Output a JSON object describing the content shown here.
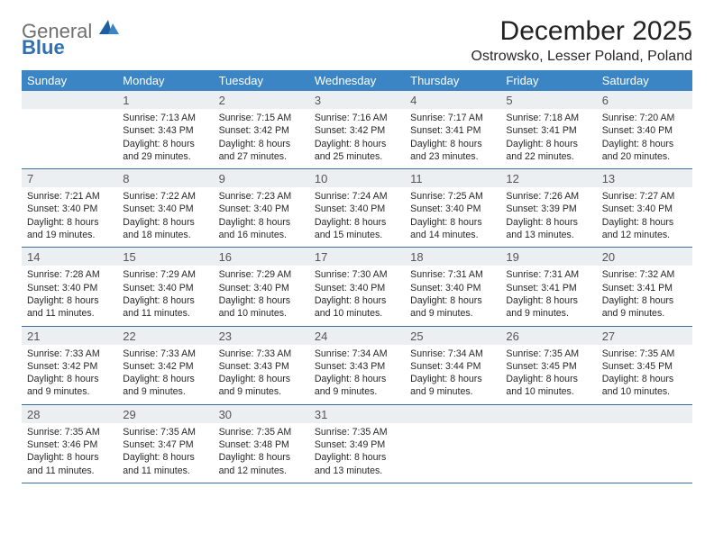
{
  "brand": {
    "part1": "General",
    "part2": "Blue"
  },
  "title": "December 2025",
  "location": "Ostrowsko, Lesser Poland, Poland",
  "colors": {
    "header_bg": "#3b85c5",
    "header_text": "#ffffff",
    "daynum_bg": "#eceff1",
    "rule": "#3b6fa0",
    "logo_gray": "#6f6f6f",
    "logo_blue": "#2f6fb3",
    "body_text": "#272727"
  },
  "dayHeaders": [
    "Sunday",
    "Monday",
    "Tuesday",
    "Wednesday",
    "Thursday",
    "Friday",
    "Saturday"
  ],
  "weeks": [
    [
      null,
      {
        "n": "1",
        "sr": "7:13 AM",
        "ss": "3:43 PM",
        "dl": "8 hours and 29 minutes."
      },
      {
        "n": "2",
        "sr": "7:15 AM",
        "ss": "3:42 PM",
        "dl": "8 hours and 27 minutes."
      },
      {
        "n": "3",
        "sr": "7:16 AM",
        "ss": "3:42 PM",
        "dl": "8 hours and 25 minutes."
      },
      {
        "n": "4",
        "sr": "7:17 AM",
        "ss": "3:41 PM",
        "dl": "8 hours and 23 minutes."
      },
      {
        "n": "5",
        "sr": "7:18 AM",
        "ss": "3:41 PM",
        "dl": "8 hours and 22 minutes."
      },
      {
        "n": "6",
        "sr": "7:20 AM",
        "ss": "3:40 PM",
        "dl": "8 hours and 20 minutes."
      }
    ],
    [
      {
        "n": "7",
        "sr": "7:21 AM",
        "ss": "3:40 PM",
        "dl": "8 hours and 19 minutes."
      },
      {
        "n": "8",
        "sr": "7:22 AM",
        "ss": "3:40 PM",
        "dl": "8 hours and 18 minutes."
      },
      {
        "n": "9",
        "sr": "7:23 AM",
        "ss": "3:40 PM",
        "dl": "8 hours and 16 minutes."
      },
      {
        "n": "10",
        "sr": "7:24 AM",
        "ss": "3:40 PM",
        "dl": "8 hours and 15 minutes."
      },
      {
        "n": "11",
        "sr": "7:25 AM",
        "ss": "3:40 PM",
        "dl": "8 hours and 14 minutes."
      },
      {
        "n": "12",
        "sr": "7:26 AM",
        "ss": "3:39 PM",
        "dl": "8 hours and 13 minutes."
      },
      {
        "n": "13",
        "sr": "7:27 AM",
        "ss": "3:40 PM",
        "dl": "8 hours and 12 minutes."
      }
    ],
    [
      {
        "n": "14",
        "sr": "7:28 AM",
        "ss": "3:40 PM",
        "dl": "8 hours and 11 minutes."
      },
      {
        "n": "15",
        "sr": "7:29 AM",
        "ss": "3:40 PM",
        "dl": "8 hours and 11 minutes."
      },
      {
        "n": "16",
        "sr": "7:29 AM",
        "ss": "3:40 PM",
        "dl": "8 hours and 10 minutes."
      },
      {
        "n": "17",
        "sr": "7:30 AM",
        "ss": "3:40 PM",
        "dl": "8 hours and 10 minutes."
      },
      {
        "n": "18",
        "sr": "7:31 AM",
        "ss": "3:40 PM",
        "dl": "8 hours and 9 minutes."
      },
      {
        "n": "19",
        "sr": "7:31 AM",
        "ss": "3:41 PM",
        "dl": "8 hours and 9 minutes."
      },
      {
        "n": "20",
        "sr": "7:32 AM",
        "ss": "3:41 PM",
        "dl": "8 hours and 9 minutes."
      }
    ],
    [
      {
        "n": "21",
        "sr": "7:33 AM",
        "ss": "3:42 PM",
        "dl": "8 hours and 9 minutes."
      },
      {
        "n": "22",
        "sr": "7:33 AM",
        "ss": "3:42 PM",
        "dl": "8 hours and 9 minutes."
      },
      {
        "n": "23",
        "sr": "7:33 AM",
        "ss": "3:43 PM",
        "dl": "8 hours and 9 minutes."
      },
      {
        "n": "24",
        "sr": "7:34 AM",
        "ss": "3:43 PM",
        "dl": "8 hours and 9 minutes."
      },
      {
        "n": "25",
        "sr": "7:34 AM",
        "ss": "3:44 PM",
        "dl": "8 hours and 9 minutes."
      },
      {
        "n": "26",
        "sr": "7:35 AM",
        "ss": "3:45 PM",
        "dl": "8 hours and 10 minutes."
      },
      {
        "n": "27",
        "sr": "7:35 AM",
        "ss": "3:45 PM",
        "dl": "8 hours and 10 minutes."
      }
    ],
    [
      {
        "n": "28",
        "sr": "7:35 AM",
        "ss": "3:46 PM",
        "dl": "8 hours and 11 minutes."
      },
      {
        "n": "29",
        "sr": "7:35 AM",
        "ss": "3:47 PM",
        "dl": "8 hours and 11 minutes."
      },
      {
        "n": "30",
        "sr": "7:35 AM",
        "ss": "3:48 PM",
        "dl": "8 hours and 12 minutes."
      },
      {
        "n": "31",
        "sr": "7:35 AM",
        "ss": "3:49 PM",
        "dl": "8 hours and 13 minutes."
      },
      null,
      null,
      null
    ]
  ],
  "labels": {
    "sunrise": "Sunrise:",
    "sunset": "Sunset:",
    "daylight": "Daylight:"
  }
}
